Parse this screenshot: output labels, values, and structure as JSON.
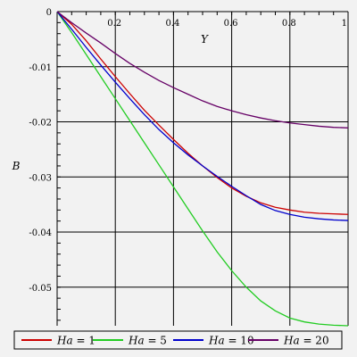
{
  "chart_data": {
    "type": "line",
    "xlabel": "Y",
    "ylabel": "B",
    "xlim": [
      0,
      1
    ],
    "ylim": [
      -0.057,
      0
    ],
    "x_ticks": [
      0.2,
      0.4,
      0.6,
      0.8,
      1
    ],
    "x_tick_labels": [
      "0.2",
      "0.4",
      "0.6",
      "0.8",
      "1"
    ],
    "y_ticks": [
      0,
      -0.01,
      -0.02,
      -0.03,
      -0.04,
      -0.05
    ],
    "y_tick_labels": [
      "0",
      "-0.01",
      "-0.02",
      "-0.03",
      "-0.04",
      "-0.05"
    ],
    "grid": true,
    "legend_position": "bottom",
    "x": [
      0,
      0.05,
      0.1,
      0.15,
      0.2,
      0.25,
      0.3,
      0.35,
      0.4,
      0.45,
      0.5,
      0.55,
      0.6,
      0.65,
      0.7,
      0.75,
      0.8,
      0.85,
      0.9,
      0.95,
      1
    ],
    "series": [
      {
        "name": "Ha = 1",
        "color": "#cc0000",
        "values": [
          0,
          -0.0023,
          -0.0053,
          -0.0086,
          -0.0118,
          -0.0149,
          -0.0179,
          -0.0206,
          -0.0232,
          -0.0257,
          -0.028,
          -0.0301,
          -0.032,
          -0.0335,
          -0.0347,
          -0.0355,
          -0.036,
          -0.0364,
          -0.0366,
          -0.0367,
          -0.0368
        ]
      },
      {
        "name": "Ha = 5",
        "color": "#22cc22",
        "values": [
          0,
          -0.0038,
          -0.0078,
          -0.0118,
          -0.0158,
          -0.0198,
          -0.0238,
          -0.0278,
          -0.0318,
          -0.0358,
          -0.0398,
          -0.0436,
          -0.047,
          -0.05,
          -0.0525,
          -0.0543,
          -0.0556,
          -0.0563,
          -0.0567,
          -0.0569,
          -0.057
        ]
      },
      {
        "name": "Ha = 10",
        "color": "#0000cc",
        "values": [
          0,
          -0.0032,
          -0.0065,
          -0.0097,
          -0.0128,
          -0.0158,
          -0.0187,
          -0.0214,
          -0.0238,
          -0.026,
          -0.028,
          -0.0299,
          -0.0317,
          -0.0334,
          -0.035,
          -0.0361,
          -0.0368,
          -0.0373,
          -0.0376,
          -0.0378,
          -0.0379
        ]
      },
      {
        "name": "Ha = 20",
        "color": "#660066",
        "values": [
          0,
          -0.002,
          -0.0039,
          -0.0057,
          -0.0076,
          -0.0094,
          -0.011,
          -0.0125,
          -0.0138,
          -0.015,
          -0.0162,
          -0.0172,
          -0.018,
          -0.0187,
          -0.0193,
          -0.0198,
          -0.0202,
          -0.0205,
          -0.0208,
          -0.021,
          -0.0211
        ]
      }
    ]
  }
}
